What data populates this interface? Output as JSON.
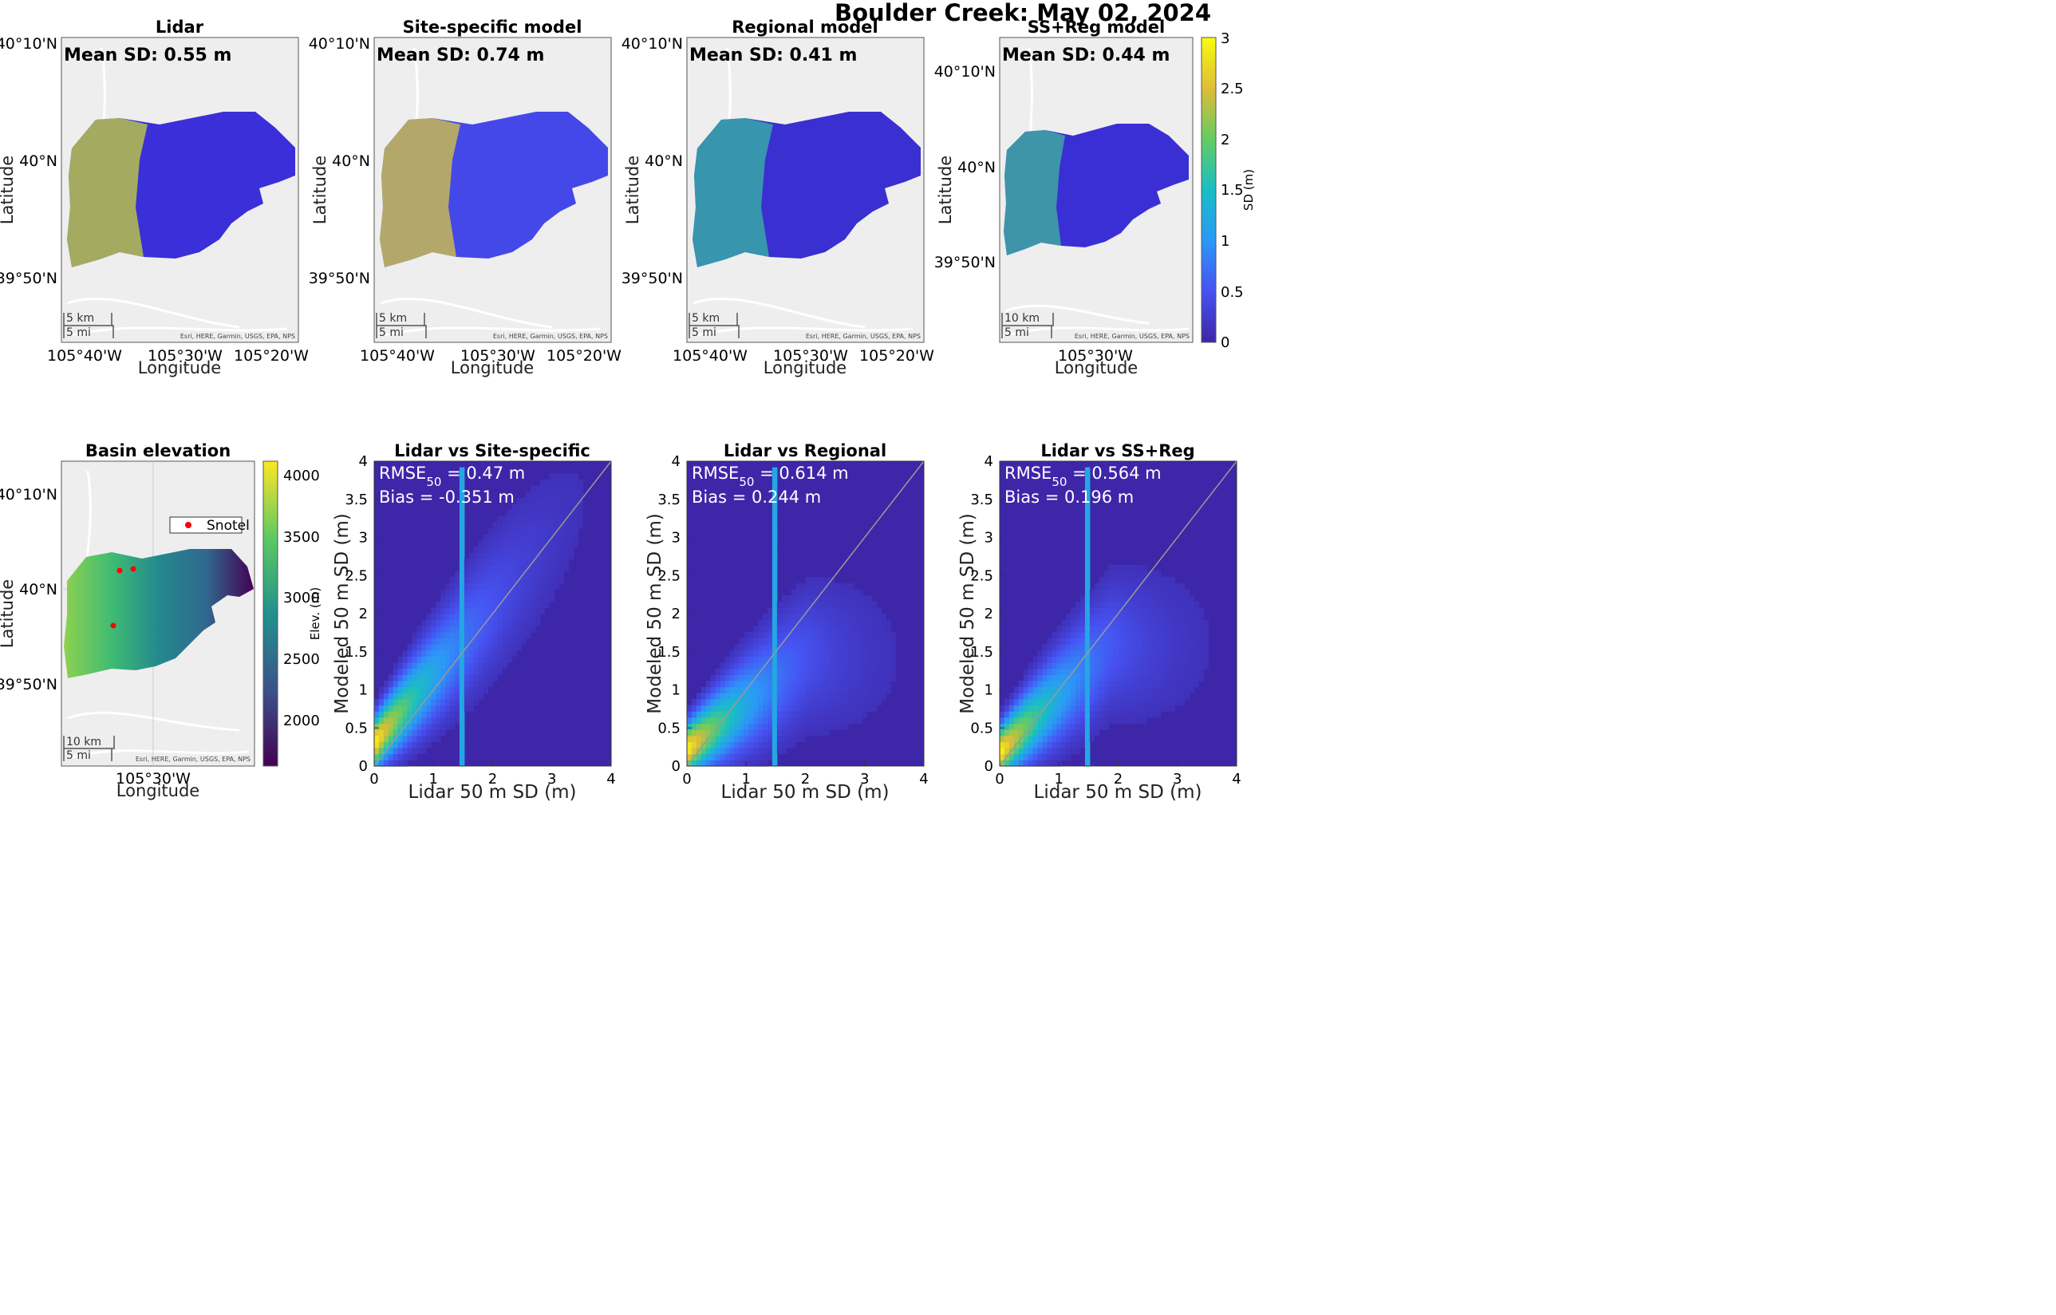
{
  "figure_title": "Boulder Creek: May 02, 2024",
  "map_common": {
    "x_label": "Longitude",
    "y_label": "Latitude",
    "attribution": "Esri, HERE, Garmin, USGS, EPA, NPS"
  },
  "maps": [
    {
      "title": "Lidar",
      "stat": "Mean SD: 0.55 m",
      "x_ticks": [
        "105°40'W",
        "105°30'W",
        "105°20'W"
      ],
      "y_ticks": [
        "40°10'N",
        "40°N",
        "39°50'N"
      ],
      "scalebar": [
        "5 km",
        "5 mi"
      ],
      "fill": "#3a2fd8",
      "west": "#c8d63a"
    },
    {
      "title": "Site-specific model",
      "stat": "Mean SD: 0.74 m",
      "x_ticks": [
        "105°40'W",
        "105°30'W",
        "105°20'W"
      ],
      "y_ticks": [
        "40°10'N",
        "40°N",
        "39°50'N"
      ],
      "scalebar": [
        "5 km",
        "5 mi"
      ],
      "fill": "#4548e8",
      "west": "#d8c840"
    },
    {
      "title": "Regional model",
      "stat": "Mean SD: 0.41 m",
      "x_ticks": [
        "105°40'W",
        "105°30'W",
        "105°20'W"
      ],
      "y_ticks": [
        "40°10'N",
        "40°N",
        "39°50'N"
      ],
      "scalebar": [
        "5 km",
        "5 mi"
      ],
      "fill": "#3a2fd0",
      "west": "#36c0a0"
    },
    {
      "title": "SS+Reg model",
      "stat": "Mean SD: 0.44 m",
      "x_ticks": [
        "105°30'W"
      ],
      "y_ticks": [
        "40°10'N",
        "40°N",
        "39°50'N"
      ],
      "scalebar": [
        "10 km",
        "5 mi"
      ],
      "fill": "#3a2fd4",
      "west": "#40c098"
    }
  ],
  "sd_colorbar": {
    "label": "SD (m)",
    "ticks": [
      "0",
      "0.5",
      "1",
      "1.5",
      "2",
      "2.5",
      "3"
    ],
    "colors": [
      "#3e26a8",
      "#4653f2",
      "#2c97f8",
      "#19bec4",
      "#66cc62",
      "#ddbd37",
      "#f9fb0e"
    ]
  },
  "elevation_map": {
    "title": "Basin elevation",
    "x_ticks": [
      "105°30'W"
    ],
    "y_ticks": [
      "40°10'N",
      "40°N",
      "39°50'N"
    ],
    "scalebar": [
      "10 km",
      "5 mi"
    ],
    "legend": "Snotel",
    "snotel_color": "#ff0000",
    "colorbar_label": "Elev. (m)",
    "colorbar_ticks": [
      "2000",
      "2500",
      "3000",
      "3500",
      "4000"
    ],
    "colors": [
      "#440154",
      "#3b528b",
      "#21918c",
      "#5ec962",
      "#fde725"
    ]
  },
  "chart_data": [
    {
      "type": "heatmap",
      "title": "Lidar vs Site-specific",
      "xlabel": "Lidar 50 m SD (m)",
      "ylabel": "Modeled 50 m SD (m)",
      "xlim": [
        0,
        4
      ],
      "ylim": [
        0,
        4
      ],
      "x_ticks": [
        "0",
        "1",
        "2",
        "3",
        "4"
      ],
      "y_ticks": [
        "0",
        "0.5",
        "1",
        "1.5",
        "2",
        "2.5",
        "3",
        "3.5",
        "4"
      ],
      "rmse_label": "RMSE",
      "rmse_sub": "50",
      "rmse_value": " = 0.47 m",
      "bias": "Bias = -0.351 m",
      "rmse_50": 0.47,
      "bias_m": -0.351
    },
    {
      "type": "heatmap",
      "title": "Lidar vs Regional",
      "xlabel": "Lidar 50 m SD (m)",
      "ylabel": "Modeled 50 m SD (m)",
      "xlim": [
        0,
        4
      ],
      "ylim": [
        0,
        4
      ],
      "x_ticks": [
        "0",
        "1",
        "2",
        "3",
        "4"
      ],
      "y_ticks": [
        "0",
        "0.5",
        "1",
        "1.5",
        "2",
        "2.5",
        "3",
        "3.5",
        "4"
      ],
      "rmse_label": "RMSE",
      "rmse_sub": "50",
      "rmse_value": " = 0.614 m",
      "bias": "Bias = 0.244 m",
      "rmse_50": 0.614,
      "bias_m": 0.244
    },
    {
      "type": "heatmap",
      "title": "Lidar vs SS+Reg",
      "xlabel": "Lidar 50 m SD (m)",
      "ylabel": "Modeled 50 m SD (m)",
      "xlim": [
        0,
        4
      ],
      "ylim": [
        0,
        4
      ],
      "x_ticks": [
        "0",
        "1",
        "2",
        "3",
        "4"
      ],
      "y_ticks": [
        "0",
        "0.5",
        "1",
        "1.5",
        "2",
        "2.5",
        "3",
        "3.5",
        "4"
      ],
      "rmse_label": "RMSE",
      "rmse_sub": "50",
      "rmse_value": " = 0.564 m",
      "bias": "Bias = 0.196 m",
      "rmse_50": 0.564,
      "bias_m": 0.196
    }
  ]
}
